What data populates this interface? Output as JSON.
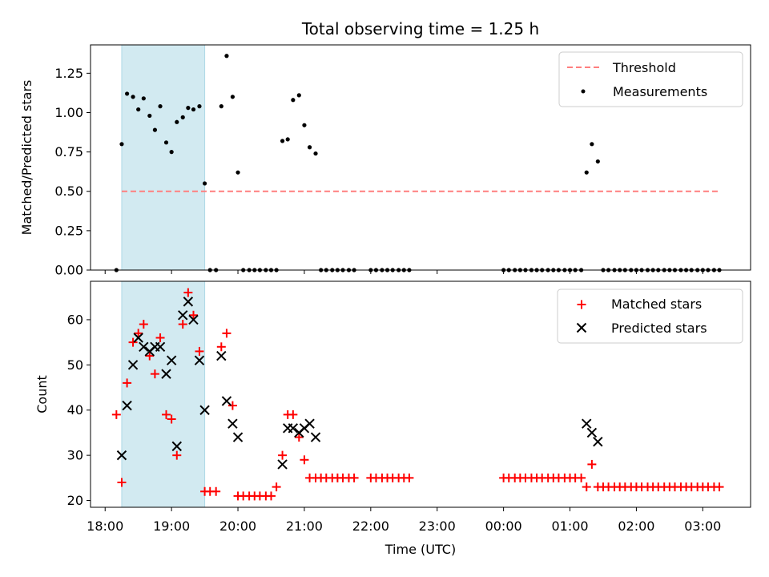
{
  "chart_data": [
    {
      "type": "scatter",
      "title": "Total observing time = 1.25 h",
      "xlabel": "",
      "ylabel": "Matched/Predicted stars",
      "ylim": [
        0,
        1.43
      ],
      "yticks": [
        "0.00",
        "0.25",
        "0.50",
        "0.75",
        "1.00",
        "1.25"
      ],
      "shaded_region": {
        "x_start_h": 18.25,
        "x_end_h": 19.5,
        "color": "#add8e6"
      },
      "threshold": {
        "name": "Threshold",
        "value": 0.5,
        "x_start_h": 18.25,
        "x_end_h": 27.25,
        "color": "#ff7f7f"
      },
      "series": [
        {
          "name": "Measurements",
          "color": "#000000",
          "marker": "dot",
          "x_h": [
            18.17,
            18.25,
            18.33,
            18.42,
            18.5,
            18.58,
            18.67,
            18.75,
            18.83,
            18.92,
            19.0,
            19.08,
            19.17,
            19.25,
            19.33,
            19.42,
            19.5,
            19.58,
            19.67,
            19.75,
            19.83,
            19.92,
            20.0,
            20.08,
            20.17,
            20.25,
            20.33,
            20.42,
            20.5,
            20.58,
            20.67,
            20.75,
            20.83,
            20.92,
            21.0,
            21.08,
            21.17,
            21.25,
            21.33,
            21.42,
            21.5,
            21.58,
            21.67,
            21.75,
            22.0,
            22.08,
            22.17,
            22.25,
            22.33,
            22.42,
            22.5,
            22.58,
            24.0,
            24.08,
            24.17,
            24.25,
            24.33,
            24.42,
            24.5,
            24.58,
            24.67,
            24.75,
            24.83,
            24.92,
            25.0,
            25.08,
            25.17,
            25.25,
            25.33,
            25.42,
            25.5,
            25.58,
            25.67,
            25.75,
            25.83,
            25.92,
            26.0,
            26.08,
            26.17,
            26.25,
            26.33,
            26.42,
            26.5,
            26.58,
            26.67,
            26.75,
            26.83,
            26.92,
            27.0,
            27.08,
            27.17,
            27.25
          ],
          "y": [
            0.0,
            0.8,
            1.12,
            1.1,
            1.02,
            1.09,
            0.98,
            0.89,
            1.04,
            0.81,
            0.75,
            0.94,
            0.97,
            1.03,
            1.02,
            1.04,
            0.55,
            0.0,
            0.0,
            1.04,
            1.36,
            1.1,
            0.62,
            0.0,
            0.0,
            0.0,
            0.0,
            0.0,
            0.0,
            0.0,
            0.82,
            0.83,
            1.08,
            1.11,
            0.92,
            0.78,
            0.74,
            0.0,
            0.0,
            0.0,
            0.0,
            0.0,
            0.0,
            0.0,
            0.0,
            0.0,
            0.0,
            0.0,
            0.0,
            0.0,
            0.0,
            0.0,
            0.0,
            0.0,
            0.0,
            0.0,
            0.0,
            0.0,
            0.0,
            0.0,
            0.0,
            0.0,
            0.0,
            0.0,
            0.0,
            0.0,
            0.0,
            0.62,
            0.8,
            0.69,
            0.0,
            0.0,
            0.0,
            0.0,
            0.0,
            0.0,
            0.0,
            0.0,
            0.0,
            0.0,
            0.0,
            0.0,
            0.0,
            0.0,
            0.0,
            0.0,
            0.0,
            0.0,
            0.0,
            0.0,
            0.0,
            0.0
          ]
        }
      ],
      "legend": {
        "position": "upper right",
        "entries": [
          "Threshold",
          "Measurements"
        ]
      }
    },
    {
      "type": "scatter",
      "title": "",
      "xlabel": "Time (UTC)",
      "ylabel": "Count",
      "ylim": [
        18.5,
        68.5
      ],
      "yticks": [
        "20",
        "30",
        "40",
        "50",
        "60"
      ],
      "x_axis": {
        "type": "time",
        "xlim_h": [
          17.78,
          27.72
        ],
        "ticks_h": [
          18,
          19,
          20,
          21,
          22,
          23,
          24,
          25,
          26,
          27
        ],
        "tick_labels": [
          "18:00",
          "19:00",
          "20:00",
          "21:00",
          "22:00",
          "23:00",
          "00:00",
          "01:00",
          "02:00",
          "03:00"
        ]
      },
      "shaded_region": {
        "x_start_h": 18.25,
        "x_end_h": 19.5,
        "color": "#add8e6"
      },
      "series": [
        {
          "name": "Matched stars",
          "color": "#ff0000",
          "marker": "plus",
          "x_h": [
            18.17,
            18.25,
            18.33,
            18.42,
            18.5,
            18.58,
            18.67,
            18.75,
            18.83,
            18.92,
            19.0,
            19.08,
            19.17,
            19.25,
            19.33,
            19.42,
            19.5,
            19.58,
            19.67,
            19.75,
            19.83,
            19.92,
            20.0,
            20.08,
            20.17,
            20.25,
            20.33,
            20.42,
            20.5,
            20.58,
            20.67,
            20.75,
            20.83,
            20.92,
            21.0,
            21.08,
            21.17,
            21.25,
            21.33,
            21.42,
            21.5,
            21.58,
            21.67,
            21.75,
            22.0,
            22.08,
            22.17,
            22.25,
            22.33,
            22.42,
            22.5,
            22.58,
            24.0,
            24.08,
            24.17,
            24.25,
            24.33,
            24.42,
            24.5,
            24.58,
            24.67,
            24.75,
            24.83,
            24.92,
            25.0,
            25.08,
            25.17,
            25.25,
            25.33,
            25.42,
            25.5,
            25.58,
            25.67,
            25.75,
            25.83,
            25.92,
            26.0,
            26.08,
            26.17,
            26.25,
            26.33,
            26.42,
            26.5,
            26.58,
            26.67,
            26.75,
            26.83,
            26.92,
            27.0,
            27.08,
            27.17,
            27.25
          ],
          "y": [
            39,
            24,
            46,
            55,
            57,
            59,
            52,
            48,
            56,
            39,
            38,
            30,
            59,
            66,
            61,
            53,
            22,
            22,
            22,
            54,
            57,
            41,
            21,
            21,
            21,
            21,
            21,
            21,
            21,
            23,
            30,
            39,
            39,
            34,
            29,
            25,
            25,
            25,
            25,
            25,
            25,
            25,
            25,
            25,
            25,
            25,
            25,
            25,
            25,
            25,
            25,
            25,
            25,
            25,
            25,
            25,
            25,
            25,
            25,
            25,
            25,
            25,
            25,
            25,
            25,
            25,
            25,
            23,
            28,
            23,
            23,
            23,
            23,
            23,
            23,
            23,
            23,
            23,
            23,
            23,
            23,
            23,
            23,
            23,
            23,
            23,
            23,
            23,
            23,
            23,
            23,
            23
          ]
        },
        {
          "name": "Predicted stars",
          "color": "#000000",
          "marker": "x",
          "x_h": [
            18.25,
            18.33,
            18.42,
            18.5,
            18.58,
            18.67,
            18.75,
            18.83,
            18.92,
            19.0,
            19.08,
            19.17,
            19.25,
            19.33,
            19.42,
            19.5,
            19.75,
            19.83,
            19.92,
            20.0,
            20.67,
            20.75,
            20.83,
            20.92,
            21.0,
            21.08,
            21.17,
            25.25,
            25.33,
            25.42
          ],
          "y": [
            30,
            41,
            50,
            56,
            54,
            53,
            54,
            54,
            48,
            51,
            32,
            61,
            64,
            60,
            51,
            40,
            52,
            42,
            37,
            34,
            28,
            36,
            36,
            35,
            36,
            37,
            34,
            37,
            35,
            33
          ]
        }
      ],
      "legend": {
        "position": "upper right",
        "entries": [
          "Matched stars",
          "Predicted stars"
        ]
      }
    }
  ]
}
